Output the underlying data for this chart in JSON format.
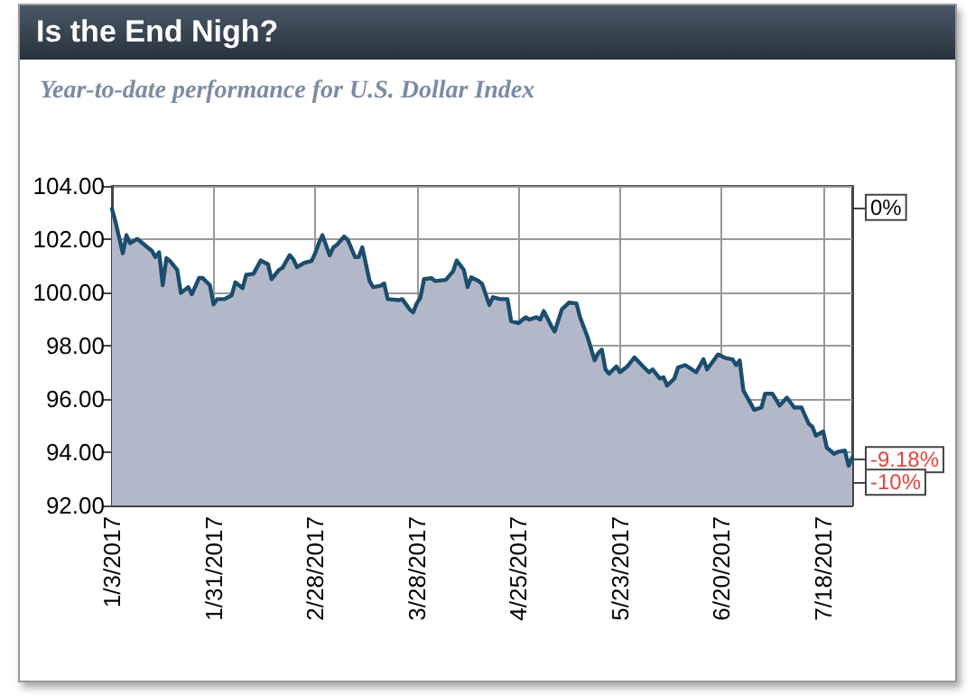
{
  "chart_data": {
    "type": "area",
    "title": "Is the End Nigh?",
    "subtitle": "Year-to-date performance for U.S. Dollar Index",
    "x": [
      "2017-01-03",
      "2017-01-04",
      "2017-01-06",
      "2017-01-07",
      "2017-01-08",
      "2017-01-10",
      "2017-01-14",
      "2017-01-15",
      "2017-01-16",
      "2017-01-17",
      "2017-01-18",
      "2017-01-19",
      "2017-01-21",
      "2017-01-22",
      "2017-01-24",
      "2017-01-25",
      "2017-01-27",
      "2017-01-28",
      "2017-01-30",
      "2017-01-31",
      "2017-02-01",
      "2017-02-03",
      "2017-02-05",
      "2017-02-06",
      "2017-02-08",
      "2017-02-09",
      "2017-02-11",
      "2017-02-13",
      "2017-02-15",
      "2017-02-16",
      "2017-02-18",
      "2017-02-19",
      "2017-02-21",
      "2017-02-22",
      "2017-02-23",
      "2017-02-25",
      "2017-02-27",
      "2017-02-28",
      "2017-03-01",
      "2017-03-02",
      "2017-03-04",
      "2017-03-05",
      "2017-03-06",
      "2017-03-08",
      "2017-03-09",
      "2017-03-11",
      "2017-03-12",
      "2017-03-13",
      "2017-03-15",
      "2017-03-16",
      "2017-03-18",
      "2017-03-19",
      "2017-03-20",
      "2017-03-23",
      "2017-03-24",
      "2017-03-26",
      "2017-03-27",
      "2017-03-28",
      "2017-03-29",
      "2017-03-30",
      "2017-04-01",
      "2017-04-02",
      "2017-04-05",
      "2017-04-07",
      "2017-04-08",
      "2017-04-09",
      "2017-04-10",
      "2017-04-11",
      "2017-04-12",
      "2017-04-14",
      "2017-04-15",
      "2017-04-17",
      "2017-04-18",
      "2017-04-20",
      "2017-04-22",
      "2017-04-23",
      "2017-04-25",
      "2017-04-27",
      "2017-04-28",
      "2017-04-30",
      "2017-05-01",
      "2017-05-02",
      "2017-05-04",
      "2017-05-05",
      "2017-05-07",
      "2017-05-09",
      "2017-05-11",
      "2017-05-12",
      "2017-05-14",
      "2017-05-16",
      "2017-05-17",
      "2017-05-18",
      "2017-05-19",
      "2017-05-20",
      "2017-05-22",
      "2017-05-23",
      "2017-05-25",
      "2017-05-27",
      "2017-05-29",
      "2017-05-31",
      "2017-06-01",
      "2017-06-03",
      "2017-06-04",
      "2017-06-05",
      "2017-06-07",
      "2017-06-08",
      "2017-06-10",
      "2017-06-11",
      "2017-06-13",
      "2017-06-15",
      "2017-06-16",
      "2017-06-19",
      "2017-06-21",
      "2017-06-23",
      "2017-06-24",
      "2017-06-25",
      "2017-06-26",
      "2017-06-29",
      "2017-07-01",
      "2017-07-02",
      "2017-07-04",
      "2017-07-06",
      "2017-07-08",
      "2017-07-10",
      "2017-07-12",
      "2017-07-14",
      "2017-07-15",
      "2017-07-16",
      "2017-07-18",
      "2017-07-19",
      "2017-07-21",
      "2017-07-22",
      "2017-07-24",
      "2017-07-25",
      "2017-07-26"
    ],
    "series": [
      {
        "color": "#1b4d6e",
        "values": [
          103.14,
          102.64,
          101.47,
          102.15,
          101.85,
          102.01,
          101.56,
          101.33,
          101.51,
          100.27,
          101.29,
          101.18,
          100.84,
          99.98,
          100.2,
          99.93,
          100.54,
          100.54,
          100.27,
          99.55,
          99.75,
          99.75,
          99.89,
          100.38,
          100.16,
          100.66,
          100.7,
          101.2,
          101.06,
          100.5,
          100.84,
          100.93,
          101.4,
          101.24,
          100.95,
          101.11,
          101.18,
          101.47,
          101.85,
          102.15,
          101.4,
          101.69,
          101.79,
          102.1,
          101.97,
          101.33,
          101.33,
          101.69,
          100.43,
          100.2,
          100.25,
          100.34,
          99.75,
          99.71,
          99.75,
          99.37,
          99.25,
          99.59,
          99.8,
          100.5,
          100.54,
          100.43,
          100.47,
          100.79,
          101.2,
          101.02,
          100.84,
          100.2,
          100.57,
          100.43,
          100.32,
          99.53,
          99.82,
          99.75,
          99.75,
          98.92,
          98.85,
          99.07,
          98.98,
          99.07,
          98.98,
          99.3,
          98.76,
          98.53,
          99.37,
          99.62,
          99.59,
          99.07,
          98.35,
          97.45,
          97.72,
          97.85,
          97.11,
          96.95,
          97.22,
          97.0,
          97.22,
          97.56,
          97.27,
          97.0,
          97.11,
          96.77,
          96.81,
          96.5,
          96.77,
          97.18,
          97.27,
          97.18,
          97.0,
          97.49,
          97.11,
          97.67,
          97.54,
          97.49,
          97.27,
          97.45,
          96.32,
          95.59,
          95.68,
          96.2,
          96.2,
          95.75,
          96.05,
          95.68,
          95.68,
          95.07,
          94.96,
          94.62,
          94.78,
          94.17,
          93.94,
          94.01,
          94.06,
          93.49,
          93.8
        ]
      }
    ],
    "xlim": [
      "2017-01-03",
      "2017-07-26"
    ],
    "xticks": [
      {
        "value": "2017-01-03",
        "label": "1/3/2017"
      },
      {
        "value": "2017-01-31",
        "label": "1/31/2017"
      },
      {
        "value": "2017-02-28",
        "label": "2/28/2017"
      },
      {
        "value": "2017-03-28",
        "label": "3/28/2017"
      },
      {
        "value": "2017-04-25",
        "label": "4/25/2017"
      },
      {
        "value": "2017-05-23",
        "label": "5/23/2017"
      },
      {
        "value": "2017-06-20",
        "label": "6/20/2017"
      },
      {
        "value": "2017-07-18",
        "label": "7/18/2017"
      }
    ],
    "ylim": [
      92,
      104
    ],
    "yticks": [
      {
        "value": 92,
        "label": "92.00"
      },
      {
        "value": 94,
        "label": "94.00"
      },
      {
        "value": 96,
        "label": "96.00"
      },
      {
        "value": 98,
        "label": "98.00"
      },
      {
        "value": 100,
        "label": "100.00"
      },
      {
        "value": 102,
        "label": "102.00"
      },
      {
        "value": 104,
        "label": "104.00"
      }
    ],
    "y2lim": [
      -10.85,
      0.78
    ],
    "y2ticks": [
      {
        "value": 0,
        "label": "0%"
      },
      {
        "value": -9.18,
        "label": "-9.18%"
      },
      {
        "value": -10,
        "label": "-10%"
      }
    ],
    "grid": true,
    "marker": "none",
    "line_style": "solid"
  }
}
